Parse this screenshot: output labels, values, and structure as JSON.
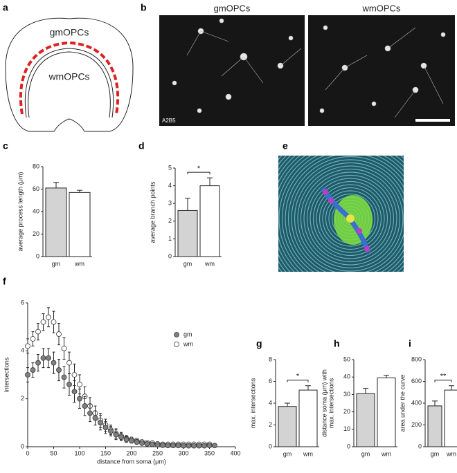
{
  "panel_labels": [
    "a",
    "b",
    "c",
    "d",
    "e",
    "f",
    "g",
    "h",
    "i"
  ],
  "diagram": {
    "labels": [
      "gmOPCs",
      "wmOPCs"
    ]
  },
  "micrographs": {
    "titles": [
      "gmOPCs",
      "wmOPCs"
    ],
    "stain": "A2B5"
  },
  "chart_data": [
    {
      "type": "bar",
      "categories": [
        "gm",
        "wm"
      ],
      "values": [
        61,
        57
      ],
      "errors": [
        5,
        2
      ],
      "colors": [
        "#d3d3d3",
        "#ffffff"
      ],
      "ylim": [
        0,
        80
      ],
      "yticks": [
        0,
        20,
        40,
        60,
        80
      ],
      "ylabel": [
        "average process length (μm)"
      ]
    },
    {
      "type": "bar",
      "categories": [
        "gm",
        "wm"
      ],
      "values": [
        2.6,
        4.0
      ],
      "errors": [
        0.7,
        0.45
      ],
      "colors": [
        "#d3d3d3",
        "#ffffff"
      ],
      "ylim": [
        0,
        5
      ],
      "yticks": [
        0,
        1,
        2,
        3,
        4,
        5
      ],
      "ylabel": [
        "average branch points"
      ],
      "significance": "*"
    },
    {
      "type": "bar",
      "categories": [
        "gm",
        "wm"
      ],
      "values": [
        3.7,
        5.2
      ],
      "errors": [
        0.3,
        0.4
      ],
      "colors": [
        "#d3d3d3",
        "#ffffff"
      ],
      "ylim": [
        0,
        8
      ],
      "yticks": [
        0,
        2,
        4,
        6,
        8
      ],
      "ylabel": [
        "max. intersections"
      ],
      "significance": "*"
    },
    {
      "type": "bar",
      "categories": [
        "gm",
        "wm"
      ],
      "values": [
        30.5,
        39.5
      ],
      "errors": [
        3,
        1.5
      ],
      "colors": [
        "#d3d3d3",
        "#ffffff"
      ],
      "ylim": [
        0,
        50
      ],
      "yticks": [
        0,
        10,
        20,
        30,
        40,
        50
      ],
      "ylabel": [
        "distance soma (μm) with",
        "max. intersections"
      ]
    },
    {
      "type": "bar",
      "categories": [
        "gm",
        "wm"
      ],
      "values": [
        375,
        520
      ],
      "errors": [
        45,
        40
      ],
      "colors": [
        "#d3d3d3",
        "#ffffff"
      ],
      "ylim": [
        0,
        800
      ],
      "yticks": [
        0,
        200,
        400,
        600,
        800
      ],
      "ylabel": [
        "area under the curve"
      ],
      "significance": "**"
    },
    {
      "type": "scatter",
      "xlabel": "distance from soma (μm)",
      "ylabel": "intersections",
      "xlim": [
        0,
        400
      ],
      "xticks": [
        0,
        50,
        100,
        150,
        200,
        250,
        300,
        350,
        400
      ],
      "ylim": [
        0,
        6
      ],
      "yticks": [
        0,
        2,
        4,
        6
      ],
      "x": [
        0,
        10,
        20,
        30,
        40,
        50,
        60,
        70,
        80,
        90,
        100,
        110,
        120,
        130,
        140,
        150,
        160,
        170,
        180,
        190,
        200,
        210,
        220,
        230,
        240,
        250,
        260,
        270,
        280,
        290,
        300,
        310,
        320,
        330,
        340,
        350,
        360
      ],
      "series": [
        {
          "name": "gm",
          "color": "#808080",
          "values": [
            3.0,
            3.2,
            3.5,
            3.7,
            3.7,
            3.5,
            3.2,
            2.9,
            2.6,
            2.3,
            2.0,
            1.7,
            1.4,
            1.2,
            1.0,
            0.8,
            0.65,
            0.5,
            0.4,
            0.3,
            0.25,
            0.2,
            0.15,
            0.12,
            0.1,
            0.08,
            0.06,
            0.05,
            0.05,
            0.05,
            0.04,
            0.04,
            0.04,
            0.04,
            0.04,
            0.05,
            0.05
          ],
          "errors": [
            0.3,
            0.3,
            0.35,
            0.4,
            0.4,
            0.45,
            0.45,
            0.45,
            0.45,
            0.45,
            0.4,
            0.4,
            0.35,
            0.3,
            0.3,
            0.25,
            0.2,
            0.2,
            0.15,
            0.12,
            0.1,
            0.1,
            0.08,
            0.07,
            0.06,
            0.05,
            0.05,
            0.04,
            0.04,
            0.04,
            0.04,
            0.04,
            0.04,
            0.04,
            0.04,
            0.04,
            0.04
          ]
        },
        {
          "name": "wm",
          "color": "#ffffff",
          "values": [
            4.2,
            4.5,
            4.8,
            5.2,
            5.4,
            5.2,
            4.7,
            4.1,
            3.5,
            3.0,
            2.6,
            2.1,
            1.7,
            1.4,
            1.1,
            0.9,
            0.7,
            0.55,
            0.45,
            0.35,
            0.3,
            0.25,
            0.2,
            0.17,
            0.15,
            0.12,
            0.1,
            0.1,
            0.1,
            0.1,
            0.1,
            0.1,
            0.1,
            0.1,
            0.1,
            0.1,
            null
          ],
          "errors": [
            0.3,
            0.3,
            0.35,
            0.35,
            0.4,
            0.45,
            0.45,
            0.45,
            0.45,
            0.45,
            0.4,
            0.4,
            0.35,
            0.3,
            0.3,
            0.25,
            0.2,
            0.2,
            0.15,
            0.12,
            0.1,
            0.1,
            0.08,
            0.07,
            0.06,
            0.05,
            0.05,
            0.05,
            0.05,
            0.05,
            0.05,
            0.05,
            0.05,
            0.05,
            0.05,
            0.05,
            null
          ]
        }
      ]
    }
  ]
}
